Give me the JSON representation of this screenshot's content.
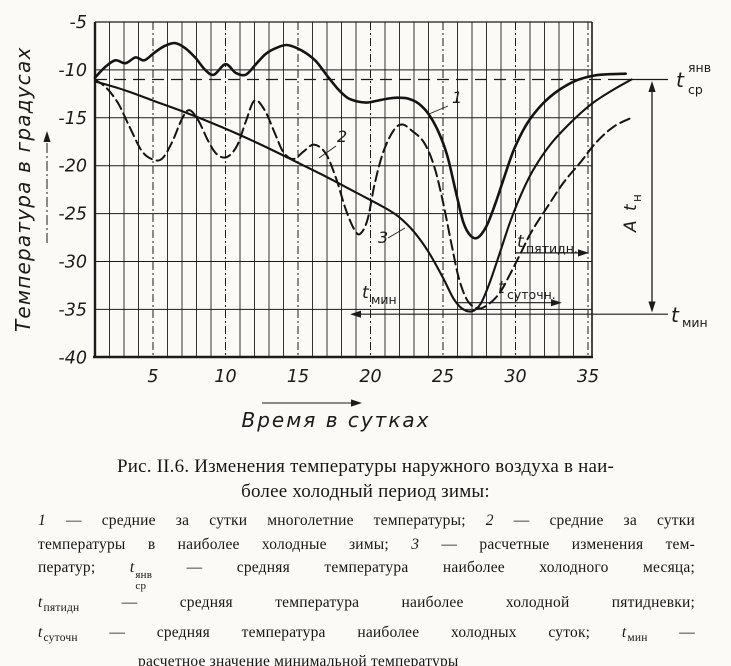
{
  "chart_data": {
    "type": "line",
    "x_axis": {
      "label": "Время в сутках",
      "ticks": [
        5,
        10,
        15,
        20,
        25,
        30,
        35
      ],
      "range": [
        1,
        35.3
      ]
    },
    "y_axis": {
      "label": "Температура в градусах",
      "ticks": [
        -5,
        -10,
        -15,
        -20,
        -25,
        -30,
        -35,
        -40
      ],
      "range": [
        -40,
        -5
      ]
    },
    "grid": {
      "minor_vertical_step": 1,
      "major_vertical_step": 5,
      "horizontal_step": 5
    },
    "series": [
      {
        "id": "1",
        "label": "1",
        "style": "solid",
        "name": "средние за сутки многолетние температуры",
        "points": [
          [
            1,
            -10.8
          ],
          [
            1.7,
            -9.7
          ],
          [
            2.4,
            -9.0
          ],
          [
            3.1,
            -9.3
          ],
          [
            3.8,
            -8.7
          ],
          [
            4.4,
            -9.0
          ],
          [
            5.1,
            -8.2
          ],
          [
            5.8,
            -7.5
          ],
          [
            6.5,
            -7.2
          ],
          [
            7.2,
            -7.7
          ],
          [
            7.9,
            -8.7
          ],
          [
            8.6,
            -10.0
          ],
          [
            9.2,
            -10.5
          ],
          [
            10,
            -9.4
          ],
          [
            10.7,
            -10.3
          ],
          [
            11.4,
            -10.5
          ],
          [
            12.1,
            -9.4
          ],
          [
            12.8,
            -8.3
          ],
          [
            13.5,
            -7.7
          ],
          [
            14.2,
            -7.4
          ],
          [
            14.9,
            -7.7
          ],
          [
            15.6,
            -8.3
          ],
          [
            16.3,
            -9.2
          ],
          [
            17,
            -10.6
          ],
          [
            17.7,
            -11.9
          ],
          [
            18.4,
            -12.9
          ],
          [
            19.1,
            -13.3
          ],
          [
            19.8,
            -13.4
          ],
          [
            20.5,
            -13.2
          ],
          [
            21.2,
            -13.0
          ],
          [
            21.9,
            -12.9
          ],
          [
            22.6,
            -13.0
          ],
          [
            23.3,
            -13.5
          ],
          [
            24,
            -14.6
          ],
          [
            24.7,
            -16.5
          ],
          [
            25.3,
            -19
          ],
          [
            25.9,
            -22.8
          ],
          [
            26.4,
            -25.9
          ],
          [
            26.9,
            -27.3
          ],
          [
            27.4,
            -27.5
          ],
          [
            28,
            -26.3
          ],
          [
            28.6,
            -24
          ],
          [
            29.2,
            -21.3
          ],
          [
            29.9,
            -18.3
          ],
          [
            30.8,
            -15.6
          ],
          [
            31.9,
            -13.5
          ],
          [
            33,
            -12.1
          ],
          [
            34.2,
            -11.1
          ],
          [
            35.4,
            -10.6
          ],
          [
            36.5,
            -10.45
          ],
          [
            37.6,
            -10.4
          ]
        ]
      },
      {
        "id": "2",
        "label": "2",
        "style": "dashed",
        "name": "средние за сутки температуры в наиболее холодные зимы",
        "points": [
          [
            1,
            -11
          ],
          [
            1.8,
            -11.9
          ],
          [
            2.6,
            -13.5
          ],
          [
            3.4,
            -16
          ],
          [
            4.2,
            -18.4
          ],
          [
            4.9,
            -19.3
          ],
          [
            5.6,
            -19.3
          ],
          [
            6.3,
            -17.6
          ],
          [
            7,
            -15.1
          ],
          [
            7.5,
            -14.2
          ],
          [
            8.1,
            -15.2
          ],
          [
            8.8,
            -17.4
          ],
          [
            9.4,
            -18.8
          ],
          [
            10.1,
            -19.1
          ],
          [
            10.8,
            -17.9
          ],
          [
            11.4,
            -15.4
          ],
          [
            12,
            -13.2
          ],
          [
            12.7,
            -14.2
          ],
          [
            13.4,
            -16.6
          ],
          [
            14,
            -18.6
          ],
          [
            14.7,
            -19.3
          ],
          [
            15.4,
            -18.5
          ],
          [
            16.1,
            -17.8
          ],
          [
            16.9,
            -18.7
          ],
          [
            17.6,
            -21.2
          ],
          [
            18.3,
            -24.6
          ],
          [
            18.9,
            -26.7
          ],
          [
            19.3,
            -27.1
          ],
          [
            19.8,
            -25.6
          ],
          [
            20.3,
            -21.8
          ],
          [
            20.9,
            -18.5
          ],
          [
            21.6,
            -16.3
          ],
          [
            22.2,
            -15.7
          ],
          [
            22.9,
            -16.4
          ],
          [
            23.7,
            -17.6
          ],
          [
            24.4,
            -20.1
          ],
          [
            25,
            -23.8
          ],
          [
            25.6,
            -28.3
          ],
          [
            26.1,
            -31.8
          ],
          [
            26.7,
            -34.1
          ],
          [
            27.4,
            -34.9
          ],
          [
            28.1,
            -34.5
          ],
          [
            28.9,
            -33.3
          ],
          [
            29.6,
            -31.4
          ],
          [
            30.3,
            -29.3
          ],
          [
            31.1,
            -26.9
          ],
          [
            32.2,
            -24.3
          ],
          [
            33.3,
            -21.8
          ],
          [
            34.5,
            -19.6
          ],
          [
            35.6,
            -17.5
          ],
          [
            36.8,
            -15.9
          ],
          [
            38,
            -15
          ]
        ]
      },
      {
        "id": "3",
        "label": "3",
        "style": "solid",
        "name": "расчетные изменения температур",
        "points": [
          [
            1,
            -11.2
          ],
          [
            3,
            -12.1
          ],
          [
            5,
            -13.2
          ],
          [
            7,
            -14.3
          ],
          [
            9,
            -15.5
          ],
          [
            11,
            -16.8
          ],
          [
            13,
            -18.2
          ],
          [
            15,
            -19.7
          ],
          [
            17,
            -21.2
          ],
          [
            19,
            -22.8
          ],
          [
            21,
            -24.4
          ],
          [
            22,
            -25.4
          ],
          [
            23,
            -26.9
          ],
          [
            24,
            -29
          ],
          [
            25,
            -31.7
          ],
          [
            25.7,
            -33.8
          ],
          [
            26.3,
            -34.9
          ],
          [
            27,
            -35.2
          ],
          [
            27.6,
            -34.4
          ],
          [
            28.2,
            -32.3
          ],
          [
            28.9,
            -29.2
          ],
          [
            29.6,
            -26
          ],
          [
            30.3,
            -23.3
          ],
          [
            31.2,
            -20.5
          ],
          [
            32.4,
            -17.8
          ],
          [
            33.8,
            -15.5
          ],
          [
            35.2,
            -13.6
          ],
          [
            36.6,
            -12.2
          ],
          [
            38,
            -11
          ]
        ]
      }
    ],
    "levels": [
      {
        "id": "t_sr_janv",
        "value": -11,
        "meaning": "средняя температура наиболее холодного месяца"
      },
      {
        "id": "t_pyatidn",
        "value": -29.1,
        "meaning": "средняя температура наиболее холодной пятидневки"
      },
      {
        "id": "t_sutochn",
        "value": -34.3,
        "meaning": "средняя температура наиболее холодных суток"
      },
      {
        "id": "t_min",
        "value": -35.5,
        "meaning": "расчетное значение минимальной температуры"
      }
    ]
  },
  "chart_labels": {
    "curve1": "1",
    "curve2": "2",
    "curve3": "3",
    "t_sr": {
      "base": "t",
      "sub": "ср",
      "sup": "янв"
    },
    "t_min_right": {
      "base": "t",
      "sub": "мин"
    },
    "t_min_in": {
      "base": "t",
      "sub": "мин"
    },
    "t_sutochn": {
      "base": "t",
      "sub": "суточн."
    },
    "t_pyatidn": {
      "base": "t",
      "sub": "пятидн."
    },
    "a_tn": {
      "base": "A t",
      "sub": "н"
    },
    "x_title": "Время в сутках",
    "y_title": "Температура в градусах"
  },
  "caption": {
    "title_line1": "Рис. II.6. Изменения температуры наружного воздуха в наи-",
    "title_line2": "более холодный период зимы:",
    "legend_lines": [
      [
        {
          "t": "1",
          "s": "i"
        },
        {
          "t": " — средние за сутки многолетние температуры; "
        },
        {
          "t": "2",
          "s": "i"
        },
        {
          "t": " — средние за сутки"
        }
      ],
      [
        {
          "t": "температуры в наиболее холодные зимы; "
        },
        {
          "t": "3",
          "s": "i"
        },
        {
          "t": " — расчетные изменения тем-"
        }
      ],
      [
        {
          "t": "ператур; "
        },
        {
          "sym": {
            "base": "t",
            "sup": "янв",
            "sub": "ср"
          }
        },
        {
          "t": " — средняя температура наиболее холодного месяца;"
        }
      ],
      [
        {
          "sym": {
            "base": "t",
            "sub": "пятидн"
          }
        },
        {
          "t": " — средняя температура наиболее холодной пятидневки;"
        }
      ],
      [
        {
          "sym": {
            "base": "t",
            "sub": "суточн"
          }
        },
        {
          "t": " — средняя температура наиболее холодных суток; "
        },
        {
          "sym": {
            "base": "t",
            "sub": "мин"
          }
        },
        {
          "t": " —"
        }
      ],
      [
        {
          "t": "расчетное значение минимальной температуры"
        }
      ]
    ]
  }
}
